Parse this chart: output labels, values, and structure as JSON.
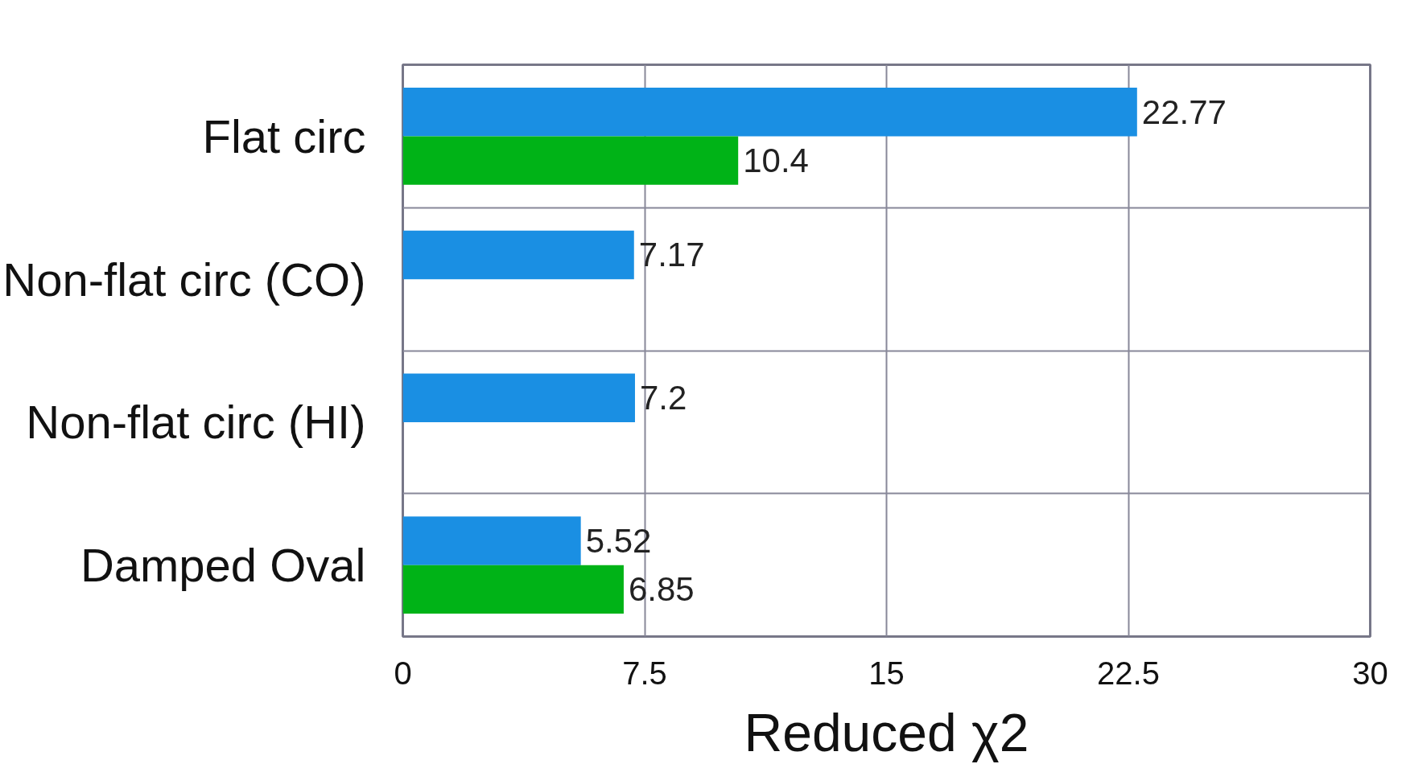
{
  "chart_data": {
    "type": "bar",
    "orientation": "horizontal",
    "xlabel": "Reduced χ2",
    "categories": [
      "Flat circ",
      "Non-flat circ (CO)",
      "Non-flat circ (HI)",
      "Damped Oval"
    ],
    "series": [
      {
        "color": "#1a8fe3",
        "values": [
          22.77,
          7.17,
          7.2,
          5.52
        ]
      },
      {
        "color": "#00b317",
        "values": [
          10.4,
          null,
          null,
          6.85
        ]
      }
    ],
    "xlim": [
      0,
      30
    ],
    "xticks": [
      0,
      7.5,
      15,
      22.5,
      30
    ],
    "grid": true,
    "data_labels": true
  }
}
